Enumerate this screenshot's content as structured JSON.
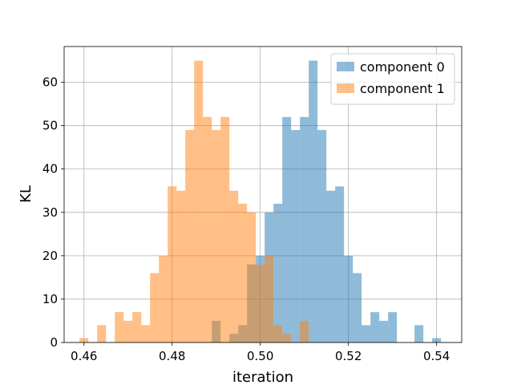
{
  "chart_data": {
    "type": "bar",
    "subtype": "overlapping-histogram",
    "xlabel": "iteration",
    "ylabel": "KL",
    "xlim": [
      0.4555,
      0.5457
    ],
    "ylim": [
      0,
      68.25
    ],
    "xticks": [
      0.46,
      0.48,
      0.5,
      0.52,
      0.54
    ],
    "xtick_labels": [
      "0.46",
      "0.48",
      "0.50",
      "0.52",
      "0.54"
    ],
    "yticks": [
      0,
      10,
      20,
      30,
      40,
      50,
      60
    ],
    "ytick_labels": [
      "0",
      "10",
      "20",
      "30",
      "40",
      "50",
      "60"
    ],
    "grid": true,
    "legend_position": "upper-right",
    "series": [
      {
        "name": "component 0",
        "color": "#1f77b4",
        "opacity": 0.5,
        "bins": [
          {
            "x0": 0.489,
            "x1": 0.491,
            "y": 5
          },
          {
            "x0": 0.493,
            "x1": 0.495,
            "y": 2
          },
          {
            "x0": 0.495,
            "x1": 0.497,
            "y": 4
          },
          {
            "x0": 0.497,
            "x1": 0.499,
            "y": 18
          },
          {
            "x0": 0.499,
            "x1": 0.501,
            "y": 20
          },
          {
            "x0": 0.501,
            "x1": 0.503,
            "y": 30
          },
          {
            "x0": 0.503,
            "x1": 0.505,
            "y": 32
          },
          {
            "x0": 0.505,
            "x1": 0.507,
            "y": 52
          },
          {
            "x0": 0.507,
            "x1": 0.509,
            "y": 49
          },
          {
            "x0": 0.509,
            "x1": 0.511,
            "y": 52
          },
          {
            "x0": 0.511,
            "x1": 0.513,
            "y": 65
          },
          {
            "x0": 0.513,
            "x1": 0.515,
            "y": 49
          },
          {
            "x0": 0.515,
            "x1": 0.517,
            "y": 35
          },
          {
            "x0": 0.517,
            "x1": 0.519,
            "y": 36
          },
          {
            "x0": 0.519,
            "x1": 0.521,
            "y": 20
          },
          {
            "x0": 0.521,
            "x1": 0.523,
            "y": 16
          },
          {
            "x0": 0.523,
            "x1": 0.525,
            "y": 4
          },
          {
            "x0": 0.525,
            "x1": 0.527,
            "y": 7
          },
          {
            "x0": 0.527,
            "x1": 0.529,
            "y": 5
          },
          {
            "x0": 0.529,
            "x1": 0.531,
            "y": 7
          },
          {
            "x0": 0.535,
            "x1": 0.537,
            "y": 4
          },
          {
            "x0": 0.539,
            "x1": 0.541,
            "y": 1
          }
        ]
      },
      {
        "name": "component 1",
        "color": "#ff7f0e",
        "opacity": 0.5,
        "bins": [
          {
            "x0": 0.459,
            "x1": 0.461,
            "y": 1
          },
          {
            "x0": 0.463,
            "x1": 0.465,
            "y": 4
          },
          {
            "x0": 0.467,
            "x1": 0.469,
            "y": 7
          },
          {
            "x0": 0.469,
            "x1": 0.471,
            "y": 5
          },
          {
            "x0": 0.471,
            "x1": 0.473,
            "y": 7
          },
          {
            "x0": 0.473,
            "x1": 0.475,
            "y": 4
          },
          {
            "x0": 0.475,
            "x1": 0.477,
            "y": 16
          },
          {
            "x0": 0.477,
            "x1": 0.479,
            "y": 20
          },
          {
            "x0": 0.479,
            "x1": 0.481,
            "y": 36
          },
          {
            "x0": 0.481,
            "x1": 0.483,
            "y": 35
          },
          {
            "x0": 0.483,
            "x1": 0.485,
            "y": 49
          },
          {
            "x0": 0.485,
            "x1": 0.487,
            "y": 65
          },
          {
            "x0": 0.487,
            "x1": 0.489,
            "y": 52
          },
          {
            "x0": 0.489,
            "x1": 0.491,
            "y": 49
          },
          {
            "x0": 0.491,
            "x1": 0.493,
            "y": 52
          },
          {
            "x0": 0.493,
            "x1": 0.495,
            "y": 35
          },
          {
            "x0": 0.495,
            "x1": 0.497,
            "y": 32
          },
          {
            "x0": 0.497,
            "x1": 0.499,
            "y": 30
          },
          {
            "x0": 0.499,
            "x1": 0.501,
            "y": 18
          },
          {
            "x0": 0.501,
            "x1": 0.503,
            "y": 20
          },
          {
            "x0": 0.503,
            "x1": 0.505,
            "y": 4
          },
          {
            "x0": 0.505,
            "x1": 0.507,
            "y": 2
          },
          {
            "x0": 0.509,
            "x1": 0.511,
            "y": 5
          }
        ]
      }
    ]
  }
}
